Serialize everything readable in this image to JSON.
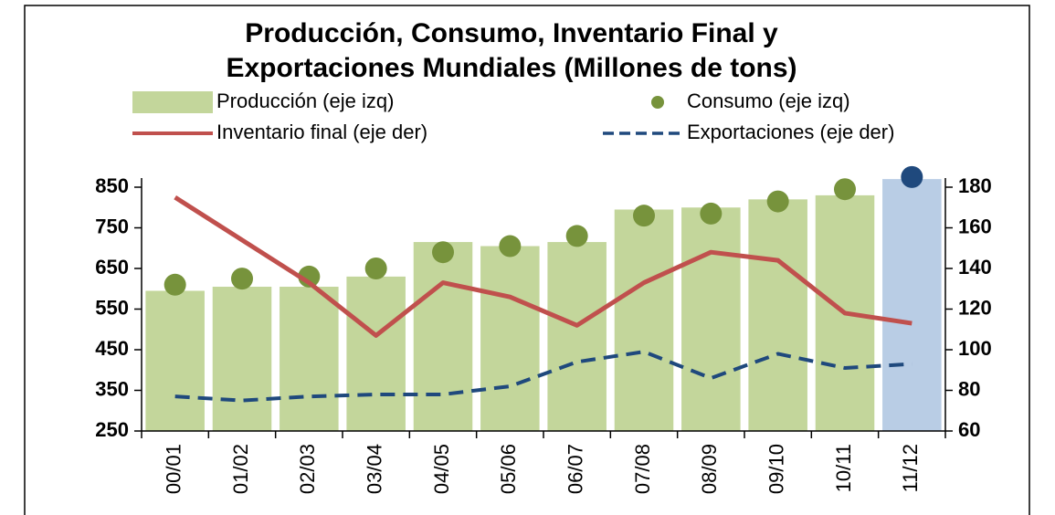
{
  "chart_data": {
    "type": "combo",
    "title": [
      "Producción, Consumo, Inventario Final y",
      "Exportaciones Mundiales (Millones de tons)"
    ],
    "categories": [
      "00/01",
      "01/02",
      "02/03",
      "03/04",
      "04/05",
      "05/06",
      "06/07",
      "07/08",
      "08/09",
      "09/10",
      "10/11",
      "11/12"
    ],
    "series": [
      {
        "name": "Producción (eje izq)",
        "kind": "bar",
        "color": "#c3d69b",
        "colors": [
          "#c3d69b",
          "#c3d69b",
          "#c3d69b",
          "#c3d69b",
          "#c3d69b",
          "#c3d69b",
          "#c3d69b",
          "#c3d69b",
          "#c3d69b",
          "#c3d69b",
          "#c3d69b",
          "#b9cde5"
        ],
        "values": [
          595,
          605,
          605,
          630,
          715,
          705,
          715,
          795,
          800,
          820,
          830,
          870
        ]
      },
      {
        "name": "Consumo (eje izq)",
        "kind": "dot",
        "color": "#77933c",
        "colors": [
          "#77933c",
          "#77933c",
          "#77933c",
          "#77933c",
          "#77933c",
          "#77933c",
          "#77933c",
          "#77933c",
          "#77933c",
          "#77933c",
          "#77933c",
          "#1f497d"
        ],
        "values": [
          610,
          625,
          630,
          650,
          690,
          705,
          730,
          780,
          785,
          815,
          845,
          875
        ]
      },
      {
        "name": "Inventario final (eje der)",
        "kind": "line",
        "color": "#c0504d",
        "axis": "y2",
        "values": [
          175,
          154,
          133,
          107,
          133,
          126,
          112,
          133,
          148,
          144,
          118,
          113
        ]
      },
      {
        "name": "Exportaciones (eje der)",
        "kind": "dash",
        "color": "#1f497d",
        "axis": "y2",
        "values": [
          77,
          75,
          77,
          78,
          78,
          82,
          94,
          99,
          86,
          98,
          91,
          93
        ]
      }
    ],
    "ylim": [
      250,
      850
    ],
    "yticks": [
      250,
      350,
      450,
      550,
      650,
      750,
      850
    ],
    "y2lim": [
      60,
      180
    ],
    "y2ticks": [
      60,
      80,
      100,
      120,
      140,
      160,
      180
    ]
  }
}
